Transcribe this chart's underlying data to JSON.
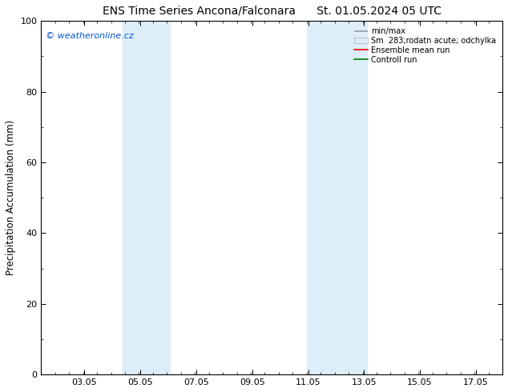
{
  "title_left": "ENS Time Series Ancona/Falconara",
  "title_right": "St. 01.05.2024 05 UTC",
  "ylabel": "Precipitation Accumulation (mm)",
  "watermark": "© weatheronline.cz",
  "legend_label1": "min/max",
  "legend_label2": "Sm  283;rodatn acute; odchylka",
  "legend_label3": "Ensemble mean run",
  "legend_label4": "Controll run",
  "ylim": [
    0,
    100
  ],
  "xlim_start": 1.5,
  "xlim_end": 18.0,
  "xticks": [
    3.05,
    5.05,
    7.05,
    9.05,
    11.05,
    13.05,
    15.05,
    17.05
  ],
  "xtick_labels": [
    "03.05",
    "05.05",
    "07.05",
    "09.05",
    "11.05",
    "13.05",
    "15.05",
    "17.05"
  ],
  "yticks": [
    0,
    20,
    40,
    60,
    80,
    100
  ],
  "shade_regions": [
    {
      "xmin": 4.4,
      "xmax": 6.1
    },
    {
      "xmin": 11.0,
      "xmax": 13.15
    }
  ],
  "shade_color": "#ddeef8",
  "bg_color": "#ffffff",
  "watermark_color": "#0055cc",
  "line_color_mean": "#ff0000",
  "line_color_control": "#008000",
  "legend_color1": "#999999",
  "title_fontsize": 10,
  "label_fontsize": 8.5,
  "tick_fontsize": 8,
  "watermark_fontsize": 8
}
